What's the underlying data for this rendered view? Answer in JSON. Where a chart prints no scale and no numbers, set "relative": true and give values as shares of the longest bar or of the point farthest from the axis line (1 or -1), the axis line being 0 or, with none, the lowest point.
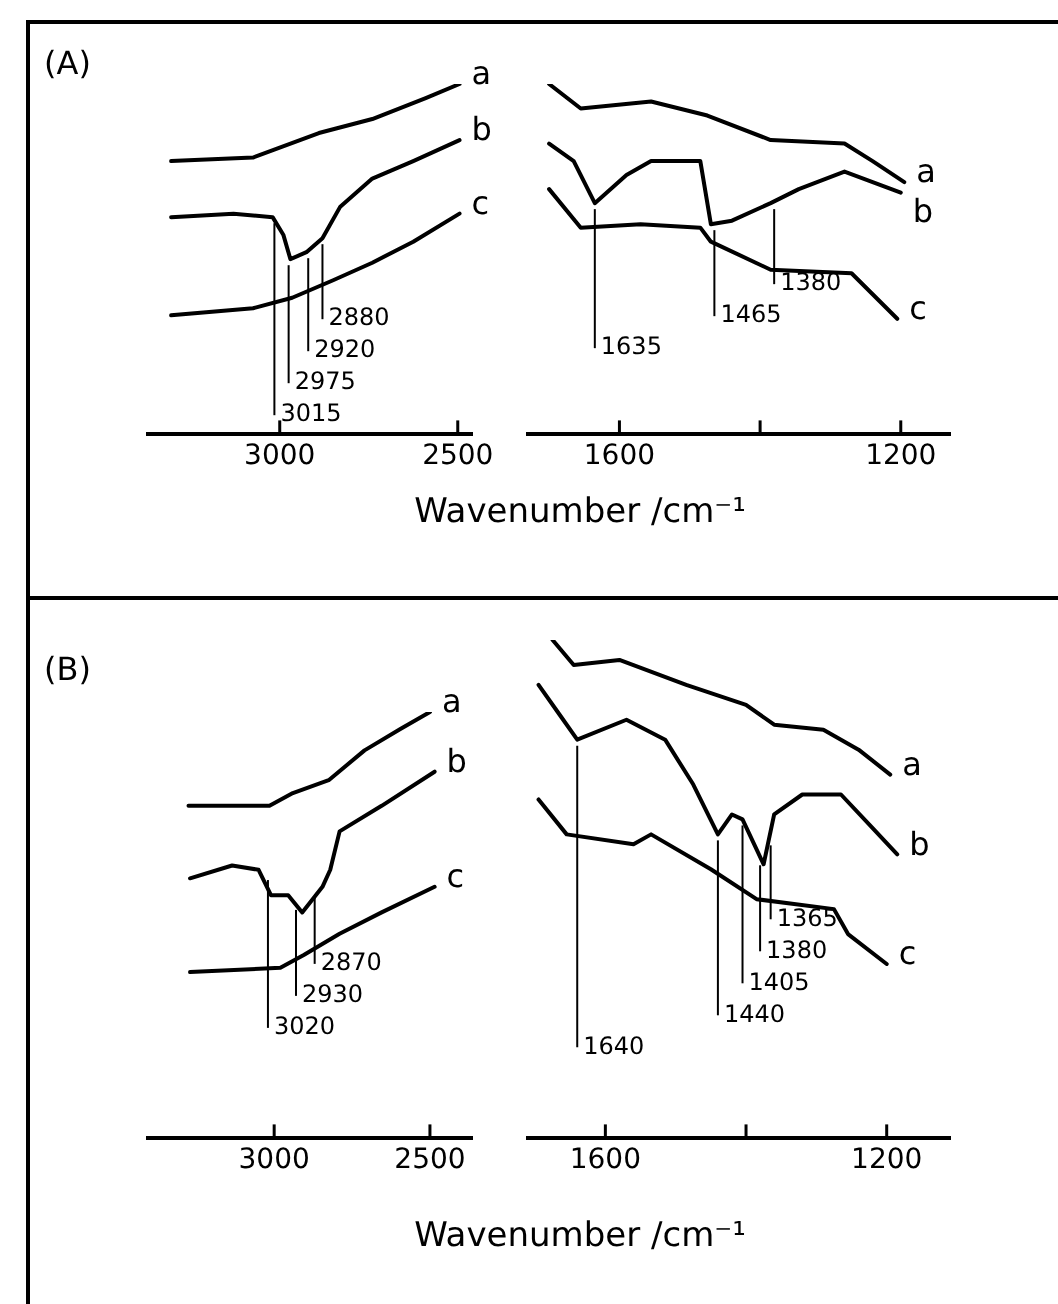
{
  "chart_data": [
    {
      "type": "line",
      "title": "(A)",
      "xlabel": "Wavenumber /cm⁻¹",
      "relative": true,
      "xlim": [
        3370,
        2460
      ],
      "xticks": [
        3000,
        2500
      ],
      "series": [
        {
          "name": "a",
          "color": "#000000",
          "x": [
            3305,
            3075,
            2890,
            2740,
            2590,
            2495
          ],
          "values": [
            0.78,
            0.79,
            0.86,
            0.9,
            0.96,
            1
          ]
        },
        {
          "name": "b",
          "color": "#000000",
          "x": [
            3305,
            3130,
            3020,
            2990,
            2970,
            2925,
            2880,
            2830,
            2740,
            2625,
            2495
          ],
          "values": [
            0.62,
            0.63,
            0.62,
            0.57,
            0.5,
            0.52,
            0.56,
            0.65,
            0.73,
            0.78,
            0.84
          ]
        },
        {
          "name": "c",
          "color": "#000000",
          "x": [
            3305,
            3075,
            2965,
            2850,
            2740,
            2625,
            2495
          ],
          "values": [
            0.34,
            0.36,
            0.39,
            0.44,
            0.49,
            0.55,
            0.63
          ]
        }
      ],
      "annotations": [
        {
          "text": "3015",
          "x": 3015,
          "y": 0.62
        },
        {
          "text": "2975",
          "x": 2975,
          "y": 0.5
        },
        {
          "text": "2920",
          "x": 2920,
          "y": 0.52
        },
        {
          "text": "2880",
          "x": 2880,
          "y": 0.56
        }
      ]
    },
    {
      "type": "line",
      "relative": true,
      "xlim": [
        1730,
        1130
      ],
      "xticks": [
        1600,
        {
          "value": 1400,
          "label": null
        },
        1200
      ],
      "series": [
        {
          "name": "a",
          "color": "#000000",
          "x": [
            1700,
            1655,
            1555,
            1475,
            1385,
            1280,
            1240,
            1195
          ],
          "values": [
            1,
            0.93,
            0.95,
            0.91,
            0.84,
            0.83,
            0.78,
            0.72
          ]
        },
        {
          "name": "b",
          "color": "#000000",
          "x": [
            1700,
            1665,
            1635,
            1590,
            1555,
            1485,
            1470,
            1440,
            1385,
            1345,
            1280,
            1200
          ],
          "values": [
            0.83,
            0.78,
            0.66,
            0.74,
            0.78,
            0.78,
            0.6,
            0.61,
            0.66,
            0.7,
            0.75,
            0.69
          ]
        },
        {
          "name": "c",
          "color": "#000000",
          "x": [
            1700,
            1655,
            1570,
            1485,
            1470,
            1385,
            1270,
            1240,
            1205
          ],
          "values": [
            0.7,
            0.59,
            0.6,
            0.59,
            0.55,
            0.47,
            0.46,
            0.4,
            0.33
          ]
        }
      ],
      "annotations": [
        {
          "text": "1635",
          "x": 1635,
          "y": 0.66
        },
        {
          "text": "1465",
          "x": 1465,
          "y": 0.6
        },
        {
          "text": "1380",
          "x": 1380,
          "y": 0.66
        }
      ]
    },
    {
      "type": "line",
      "title": "(B)",
      "xlabel": "Wavenumber /cm⁻¹",
      "relative": true,
      "xlim": [
        3405,
        2365
      ],
      "xticks": [
        3000,
        2500
      ],
      "series": [
        {
          "name": "a",
          "color": "#000000",
          "x": [
            3275,
            3015,
            2940,
            2825,
            2710,
            2595,
            2500
          ],
          "values": [
            0.78,
            0.78,
            0.81,
            0.84,
            0.91,
            0.96,
            1
          ]
        },
        {
          "name": "b",
          "color": "#000000",
          "x": [
            3270,
            3135,
            3050,
            3010,
            2955,
            2910,
            2845,
            2820,
            2790,
            2655,
            2485
          ],
          "values": [
            0.61,
            0.64,
            0.63,
            0.57,
            0.57,
            0.53,
            0.59,
            0.63,
            0.72,
            0.78,
            0.86
          ]
        },
        {
          "name": "c",
          "color": "#000000",
          "x": [
            3270,
            2980,
            2905,
            2790,
            2655,
            2485
          ],
          "values": [
            0.39,
            0.4,
            0.43,
            0.48,
            0.53,
            0.59
          ]
        }
      ],
      "annotations": [
        {
          "text": "3020",
          "x": 3020,
          "y": 0.62
        },
        {
          "text": "2930",
          "x": 2930,
          "y": 0.55
        },
        {
          "text": "2870",
          "x": 2870,
          "y": 0.58
        }
      ]
    },
    {
      "type": "line",
      "relative": true,
      "xlim": [
        1710,
        1110
      ],
      "xticks": [
        1600,
        {
          "value": 1400,
          "label": null
        },
        1200
      ],
      "series": [
        {
          "name": "a",
          "color": "#000000",
          "x": [
            1675,
            1645,
            1580,
            1485,
            1400,
            1360,
            1290,
            1240,
            1195
          ],
          "values": [
            1,
            0.95,
            0.96,
            0.91,
            0.87,
            0.83,
            0.82,
            0.78,
            0.73
          ]
        },
        {
          "name": "b",
          "color": "#000000",
          "x": [
            1695,
            1665,
            1640,
            1570,
            1515,
            1475,
            1440,
            1420,
            1405,
            1375,
            1360,
            1320,
            1265,
            1225,
            1185
          ],
          "values": [
            0.91,
            0.85,
            0.8,
            0.84,
            0.8,
            0.71,
            0.61,
            0.65,
            0.64,
            0.55,
            0.65,
            0.69,
            0.69,
            0.63,
            0.57
          ]
        },
        {
          "name": "c",
          "color": "#000000",
          "x": [
            1695,
            1655,
            1560,
            1535,
            1450,
            1385,
            1275,
            1255,
            1200
          ],
          "values": [
            0.68,
            0.61,
            0.59,
            0.61,
            0.54,
            0.48,
            0.46,
            0.41,
            0.35
          ]
        }
      ],
      "annotations": [
        {
          "text": "1640",
          "x": 1640,
          "y": 0.8
        },
        {
          "text": "1440",
          "x": 1440,
          "y": 0.61
        },
        {
          "text": "1405",
          "x": 1405,
          "y": 0.64
        },
        {
          "text": "1380",
          "x": 1380,
          "y": 0.56
        },
        {
          "text": "1365",
          "x": 1365,
          "y": 0.6
        }
      ]
    }
  ]
}
